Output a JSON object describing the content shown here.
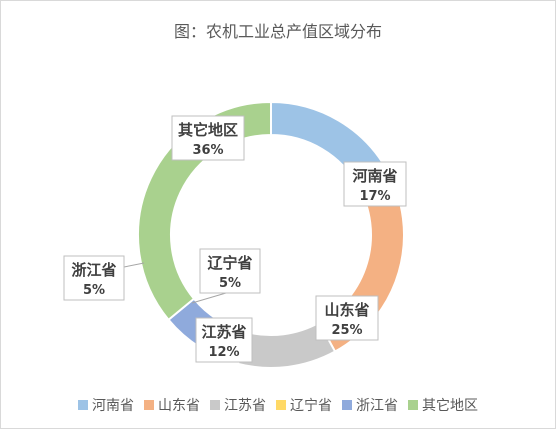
{
  "chart_data": {
    "type": "pie",
    "variant": "donut",
    "title": "图：农机工业总产值区域分布",
    "categories": [
      "河南省",
      "山东省",
      "江苏省",
      "辽宁省",
      "浙江省",
      "其它地区"
    ],
    "values": [
      17,
      25,
      12,
      5,
      5,
      36
    ],
    "value_labels": [
      "17%",
      "25%",
      "12%",
      "5%",
      "5%",
      "36%"
    ],
    "colors": [
      "#9dc3e6",
      "#f4b183",
      "#c9c9c9",
      "#ffd966",
      "#8faadc",
      "#a9d18e"
    ],
    "legend_position": "bottom"
  }
}
